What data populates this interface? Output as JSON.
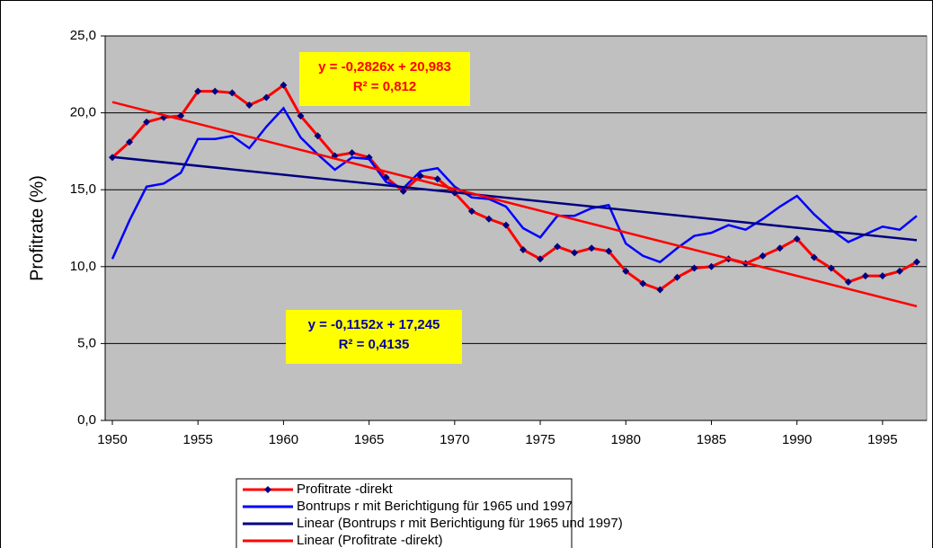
{
  "chart_data": {
    "type": "line",
    "y_label": "Profitrate (%)",
    "x": [
      1950,
      1951,
      1952,
      1953,
      1954,
      1955,
      1956,
      1957,
      1958,
      1959,
      1960,
      1961,
      1962,
      1963,
      1964,
      1965,
      1966,
      1967,
      1968,
      1969,
      1970,
      1971,
      1972,
      1973,
      1974,
      1975,
      1976,
      1977,
      1978,
      1979,
      1980,
      1981,
      1982,
      1983,
      1984,
      1985,
      1986,
      1987,
      1988,
      1989,
      1990,
      1991,
      1992,
      1993,
      1994,
      1995,
      1996,
      1997
    ],
    "xlim": [
      1949.58,
      1997.58
    ],
    "xticks": [
      1950,
      1955,
      1960,
      1965,
      1970,
      1975,
      1980,
      1985,
      1990,
      1995
    ],
    "ylim": [
      0,
      25
    ],
    "yticks": [
      {
        "value": 0,
        "label": "0,0"
      },
      {
        "value": 5,
        "label": "5,0"
      },
      {
        "value": 10,
        "label": "10,0"
      },
      {
        "value": 15,
        "label": "15,0"
      },
      {
        "value": 20,
        "label": "20,0"
      },
      {
        "value": 25,
        "label": "25,0"
      }
    ],
    "grid": true,
    "series": [
      {
        "name": "Profitrate -direkt",
        "color": "#ff0000",
        "marker_color": "#000080",
        "markers": true,
        "values": [
          17.1,
          18.1,
          19.4,
          19.7,
          19.8,
          21.4,
          21.4,
          21.3,
          20.5,
          21.0,
          21.8,
          19.8,
          18.5,
          17.2,
          17.4,
          17.1,
          15.8,
          14.9,
          15.9,
          15.7,
          14.8,
          13.6,
          13.1,
          12.7,
          11.1,
          10.5,
          11.3,
          10.9,
          11.2,
          11.0,
          9.7,
          8.9,
          8.5,
          9.3,
          9.9,
          10.0,
          10.5,
          10.2,
          10.7,
          11.2,
          11.8,
          10.6,
          9.9,
          9.0,
          9.4,
          9.4,
          9.7,
          10.3
        ]
      },
      {
        "name": "Bontrups r mit Berichtigung für 1965 und 1997",
        "color": "#0000ff",
        "markers": false,
        "values": [
          10.5,
          13.0,
          15.2,
          15.4,
          16.1,
          18.3,
          18.3,
          18.5,
          17.7,
          19.1,
          20.3,
          18.4,
          17.3,
          16.3,
          17.1,
          17.0,
          15.5,
          15.1,
          16.2,
          16.4,
          15.2,
          14.5,
          14.4,
          13.9,
          12.5,
          11.9,
          13.3,
          13.3,
          13.8,
          14.0,
          11.5,
          10.7,
          10.3,
          11.2,
          12.0,
          12.2,
          12.7,
          12.4,
          13.1,
          13.9,
          14.6,
          13.4,
          12.4,
          11.6,
          12.1,
          12.6,
          12.4,
          13.3
        ]
      },
      {
        "name": "Linear (Bontrups r mit Berichtigung für 1965 und 1997)",
        "color": "#000080",
        "markers": false,
        "x": [
          1950,
          1997
        ],
        "values": [
          17.13,
          11.72
        ]
      },
      {
        "name": "Linear (Profitrate -direkt)",
        "color": "#ff0000",
        "markers": false,
        "x": [
          1950,
          1997
        ],
        "values": [
          20.7,
          7.42
        ]
      }
    ],
    "annotations": [
      {
        "lines": [
          "y = -0,2826x + 20,983",
          "R² = 0,812"
        ],
        "color": "#ff0000",
        "background": "#ffff00"
      },
      {
        "lines": [
          "y = -0,1152x + 17,245",
          "R² = 0,4135"
        ],
        "color": "#0000a0",
        "background": "#ffff00"
      }
    ]
  }
}
